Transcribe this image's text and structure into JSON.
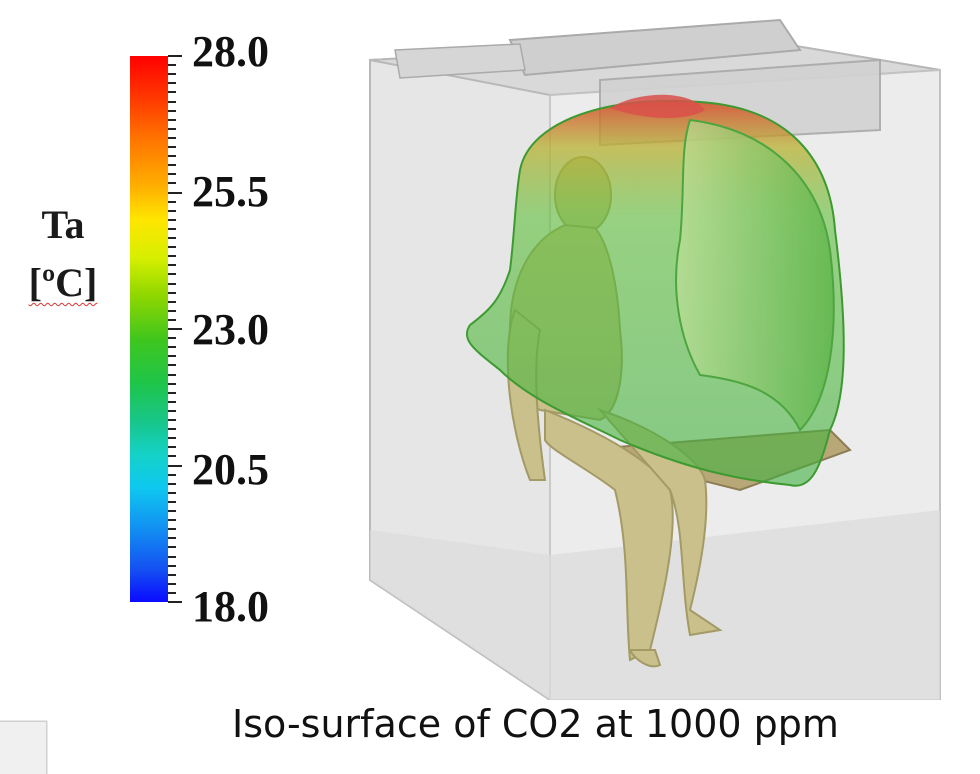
{
  "legend": {
    "title": "Ta",
    "unit": "[ºC]",
    "ticks": [
      "28.0",
      "25.5",
      "23.0",
      "20.5",
      "18.0"
    ],
    "min": 18.0,
    "max": 28.0
  },
  "caption": "Iso-surface of CO2 at 1000 ppm",
  "colors": {
    "max": "#ff0000",
    "mid": "#3fc61e",
    "min": "#0a0aff",
    "mannequin": "#c9c08c"
  }
}
